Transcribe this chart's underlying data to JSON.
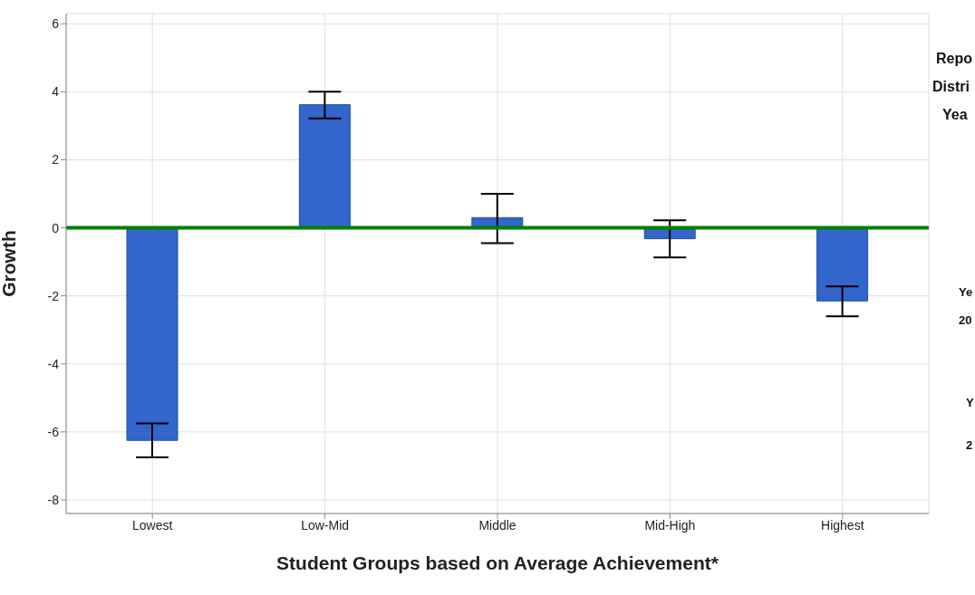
{
  "chart_data": {
    "type": "bar",
    "xlabel": "Student Groups based on Average Achievement*",
    "ylabel": "Growth",
    "categories": [
      "Lowest",
      "Low-Mid",
      "Middle",
      "Mid-High",
      "Highest"
    ],
    "values": [
      -6.25,
      3.62,
      0.3,
      -0.32,
      -2.15
    ],
    "errors": [
      [
        -6.75,
        -5.75
      ],
      [
        3.22,
        4.0
      ],
      [
        -0.45,
        1.0
      ],
      [
        -0.87,
        0.22
      ],
      [
        -2.6,
        -1.72
      ]
    ],
    "color": "#3366cc",
    "ylim": [
      -8.4,
      6.3
    ],
    "yticks": [
      -8,
      -6,
      -4,
      -2,
      0,
      2,
      4,
      6
    ],
    "grid": true,
    "ref_lines": [
      {
        "axis": "y",
        "value": 0,
        "color": "#008000"
      }
    ],
    "annotations": [
      "Repo",
      "Distri",
      "Yea",
      "Ye",
      "20",
      "Y",
      "2"
    ]
  }
}
